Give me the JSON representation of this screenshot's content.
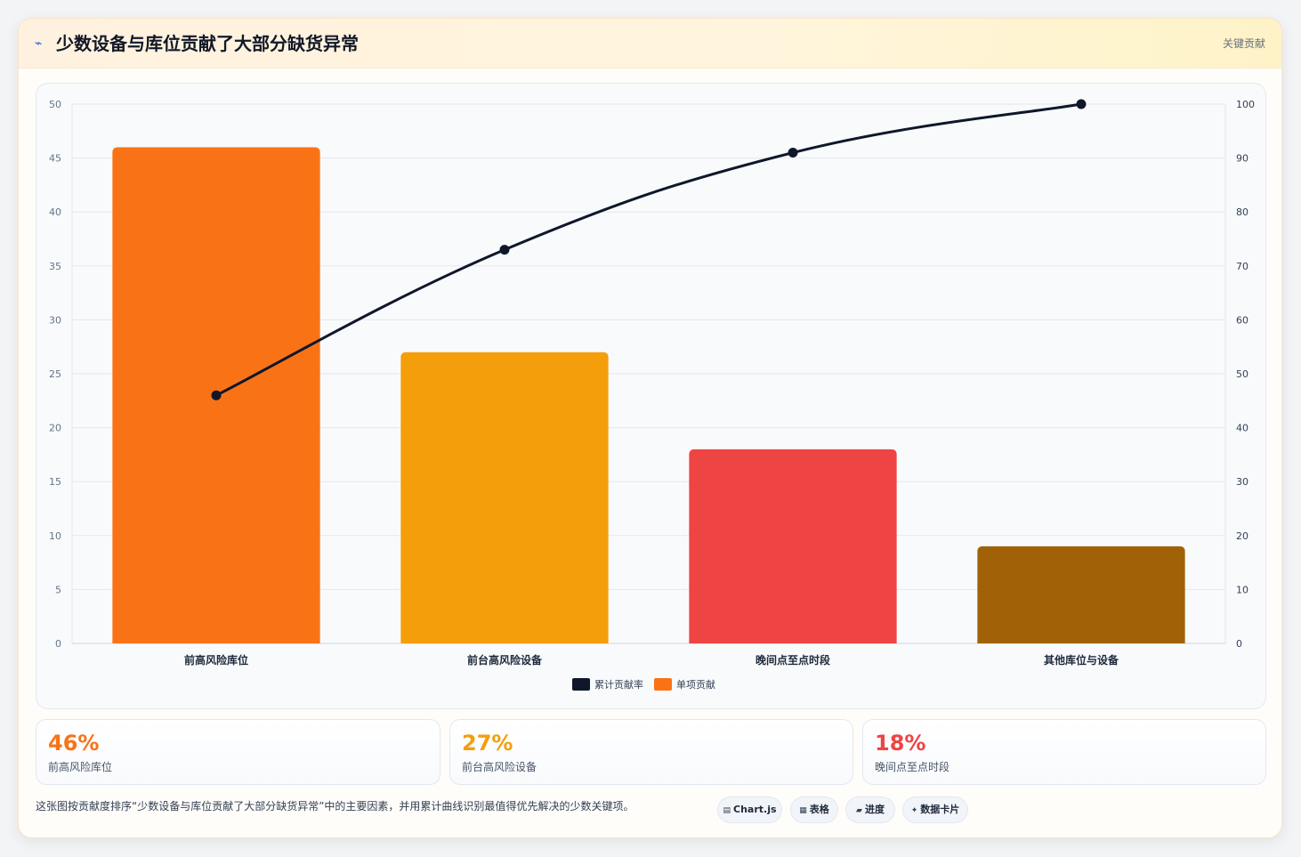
{
  "header": {
    "icon": "sparkle-icon",
    "title": "少数设备与库位贡献了大部分缺货异常",
    "tag": "关键贡献"
  },
  "chart_data": {
    "type": "bar",
    "categories": [
      "前高风险库位",
      "前台高风险设备",
      "晚间点至点时段",
      "其他库位与设备"
    ],
    "series": [
      {
        "name": "单项贡献",
        "type": "bar",
        "axis": "left",
        "values": [
          46,
          27,
          18,
          9
        ],
        "colors": [
          "#f97316",
          "#f59e0b",
          "#ef4444",
          "#a16207"
        ]
      },
      {
        "name": "累计贡献率",
        "type": "line",
        "axis": "right",
        "values": [
          46,
          73,
          91,
          100
        ],
        "color": "#0f172a"
      }
    ],
    "y_left": {
      "ylim": [
        0,
        50
      ],
      "ticks": [
        0,
        5,
        10,
        15,
        20,
        25,
        30,
        35,
        40,
        45,
        50
      ]
    },
    "y_right": {
      "ylim": [
        0,
        100
      ],
      "ticks": [
        0,
        10,
        20,
        30,
        40,
        50,
        60,
        70,
        80,
        90,
        100
      ]
    },
    "legend": {
      "position": "bottom",
      "items": [
        {
          "label": "累计贡献率",
          "color": "#0f172a"
        },
        {
          "label": "单项贡献",
          "color": "#f97316"
        }
      ]
    },
    "grid": true
  },
  "kpis": [
    {
      "value": "46%",
      "label": "前高风险库位",
      "color": "#f97316"
    },
    {
      "value": "27%",
      "label": "前台高风险设备",
      "color": "#f59e0b"
    },
    {
      "value": "18%",
      "label": "晚间点至点时段",
      "color": "#ef4444"
    }
  ],
  "footnote": "这张图按贡献度排序“少数设备与库位贡献了大部分缺货异常”中的主要因素，并用累计曲线识别最值得优先解决的少数关键项。",
  "chips": [
    {
      "icon": "chart-icon",
      "label": "Chart.js"
    },
    {
      "icon": "table-icon",
      "label": "表格"
    },
    {
      "icon": "progress-icon",
      "label": "进度"
    },
    {
      "icon": "card-icon",
      "label": "数据卡片"
    }
  ]
}
